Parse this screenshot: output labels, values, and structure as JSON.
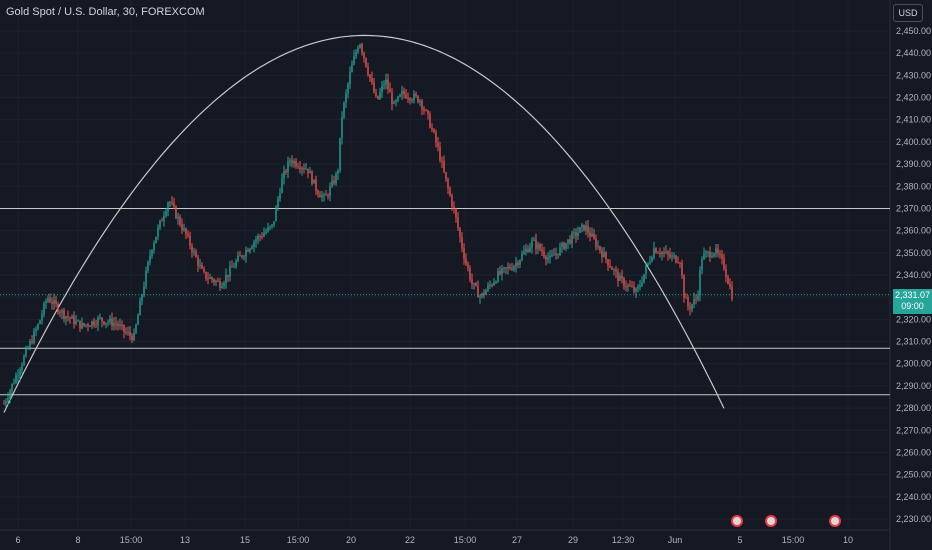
{
  "header": {
    "title": "Gold Spot / U.S. Dollar, 30, FOREXCOM",
    "currency": "USD"
  },
  "price_tag": {
    "price": "2,331.07",
    "countdown": "09:00"
  },
  "colors": {
    "background": "#151924",
    "up": "#26a69a",
    "down": "#ef5350",
    "drawing": "#c8c8c8",
    "axis_text": "#b2b5be",
    "event_border": "#f23645"
  },
  "chart_data": {
    "type": "candlestick",
    "symbol": "Gold Spot / U.S. Dollar",
    "interval": "30",
    "exchange": "FOREXCOM",
    "ylim": [
      2225,
      2455
    ],
    "y_ticks": [
      "2,230.00",
      "2,240.00",
      "2,250.00",
      "2,260.00",
      "2,270.00",
      "2,280.00",
      "2,290.00",
      "2,300.00",
      "2,310.00",
      "2,320.00",
      "2,330.00",
      "2,340.00",
      "2,350.00",
      "2,360.00",
      "2,370.00",
      "2,380.00",
      "2,390.00",
      "2,400.00",
      "2,410.00",
      "2,420.00",
      "2,430.00",
      "2,440.00",
      "2,450.00"
    ],
    "x_ticks": [
      "6",
      "8",
      "15:00",
      "13",
      "15",
      "15:00",
      "20",
      "22",
      "15:00",
      "27",
      "29",
      "12:30",
      "Jun",
      "5",
      "15:00",
      "10"
    ],
    "price_path": [
      [
        0,
        2282
      ],
      [
        0.02,
        2300
      ],
      [
        0.04,
        2318
      ],
      [
        0.05,
        2330
      ],
      [
        0.07,
        2322
      ],
      [
        0.09,
        2317
      ],
      [
        0.11,
        2320
      ],
      [
        0.13,
        2318
      ],
      [
        0.14,
        2314
      ],
      [
        0.15,
        2312
      ],
      [
        0.16,
        2333
      ],
      [
        0.17,
        2352
      ],
      [
        0.19,
        2374
      ],
      [
        0.21,
        2358
      ],
      [
        0.23,
        2340
      ],
      [
        0.25,
        2336
      ],
      [
        0.27,
        2347
      ],
      [
        0.29,
        2356
      ],
      [
        0.31,
        2362
      ],
      [
        0.32,
        2382
      ],
      [
        0.33,
        2392
      ],
      [
        0.35,
        2388
      ],
      [
        0.36,
        2379
      ],
      [
        0.37,
        2374
      ],
      [
        0.385,
        2386
      ],
      [
        0.39,
        2412
      ],
      [
        0.4,
        2432
      ],
      [
        0.41,
        2446
      ],
      [
        0.42,
        2432
      ],
      [
        0.43,
        2418
      ],
      [
        0.44,
        2428
      ],
      [
        0.45,
        2416
      ],
      [
        0.46,
        2422
      ],
      [
        0.48,
        2419
      ],
      [
        0.49,
        2410
      ],
      [
        0.5,
        2398
      ],
      [
        0.51,
        2382
      ],
      [
        0.52,
        2368
      ],
      [
        0.53,
        2350
      ],
      [
        0.54,
        2336
      ],
      [
        0.55,
        2330
      ],
      [
        0.57,
        2340
      ],
      [
        0.59,
        2345
      ],
      [
        0.61,
        2355
      ],
      [
        0.63,
        2347
      ],
      [
        0.65,
        2355
      ],
      [
        0.67,
        2362
      ],
      [
        0.69,
        2350
      ],
      [
        0.71,
        2338
      ],
      [
        0.73,
        2332
      ],
      [
        0.75,
        2352
      ],
      [
        0.77,
        2348
      ],
      [
        0.78,
        2347
      ],
      [
        0.785,
        2330
      ],
      [
        0.79,
        2325
      ],
      [
        0.8,
        2330
      ],
      [
        0.805,
        2348
      ],
      [
        0.82,
        2351
      ],
      [
        0.83,
        2345
      ],
      [
        0.84,
        2331
      ]
    ],
    "horizontal_lines": [
      2370,
      2307,
      2286
    ],
    "arc": {
      "peak_price": 2448,
      "start_price": 2278,
      "end_price": 2277
    },
    "last_price": 2331.07
  }
}
